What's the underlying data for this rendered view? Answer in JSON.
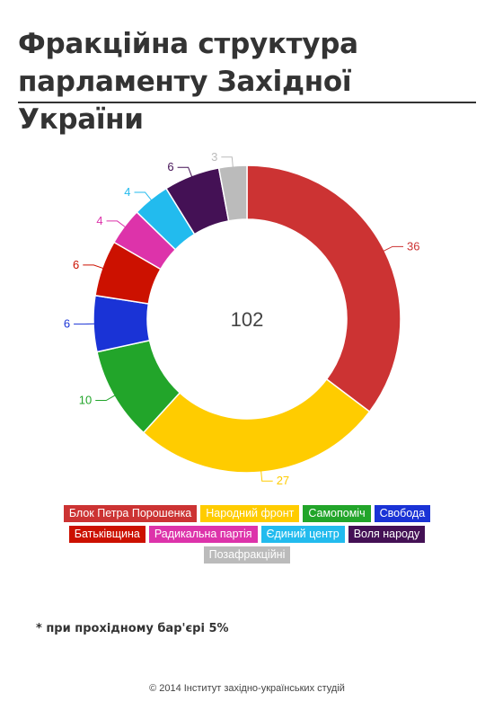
{
  "title": "Фракційна структура парламенту Західної України",
  "center_total": "102",
  "footnote": "* при прохідному бар'єрі 5%",
  "copyright": "© 2014 Інститут західно-українських студій",
  "chart_data": {
    "type": "pie",
    "donut": true,
    "title": "Фракційна структура парламенту Західної України",
    "total": 102,
    "legend_position": "bottom",
    "slices": [
      {
        "label": "Блок Петра Порошенка",
        "value": 36,
        "color": "#cc3333"
      },
      {
        "label": "Народний фронт",
        "value": 27,
        "color": "#ffcc00"
      },
      {
        "label": "Самопоміч",
        "value": 10,
        "color": "#22a52a"
      },
      {
        "label": "Свобода",
        "value": 6,
        "color": "#1a33d6"
      },
      {
        "label": "Батьківщина",
        "value": 6,
        "color": "#cc1100"
      },
      {
        "label": "Радикальна партія",
        "value": 4,
        "color": "#dd33aa"
      },
      {
        "label": "Єдиний центр",
        "value": 4,
        "color": "#22bbee"
      },
      {
        "label": "Воля народу",
        "value": 6,
        "color": "#441155"
      },
      {
        "label": "Позафракційні",
        "value": 3,
        "color": "#bbbbbb"
      }
    ]
  }
}
